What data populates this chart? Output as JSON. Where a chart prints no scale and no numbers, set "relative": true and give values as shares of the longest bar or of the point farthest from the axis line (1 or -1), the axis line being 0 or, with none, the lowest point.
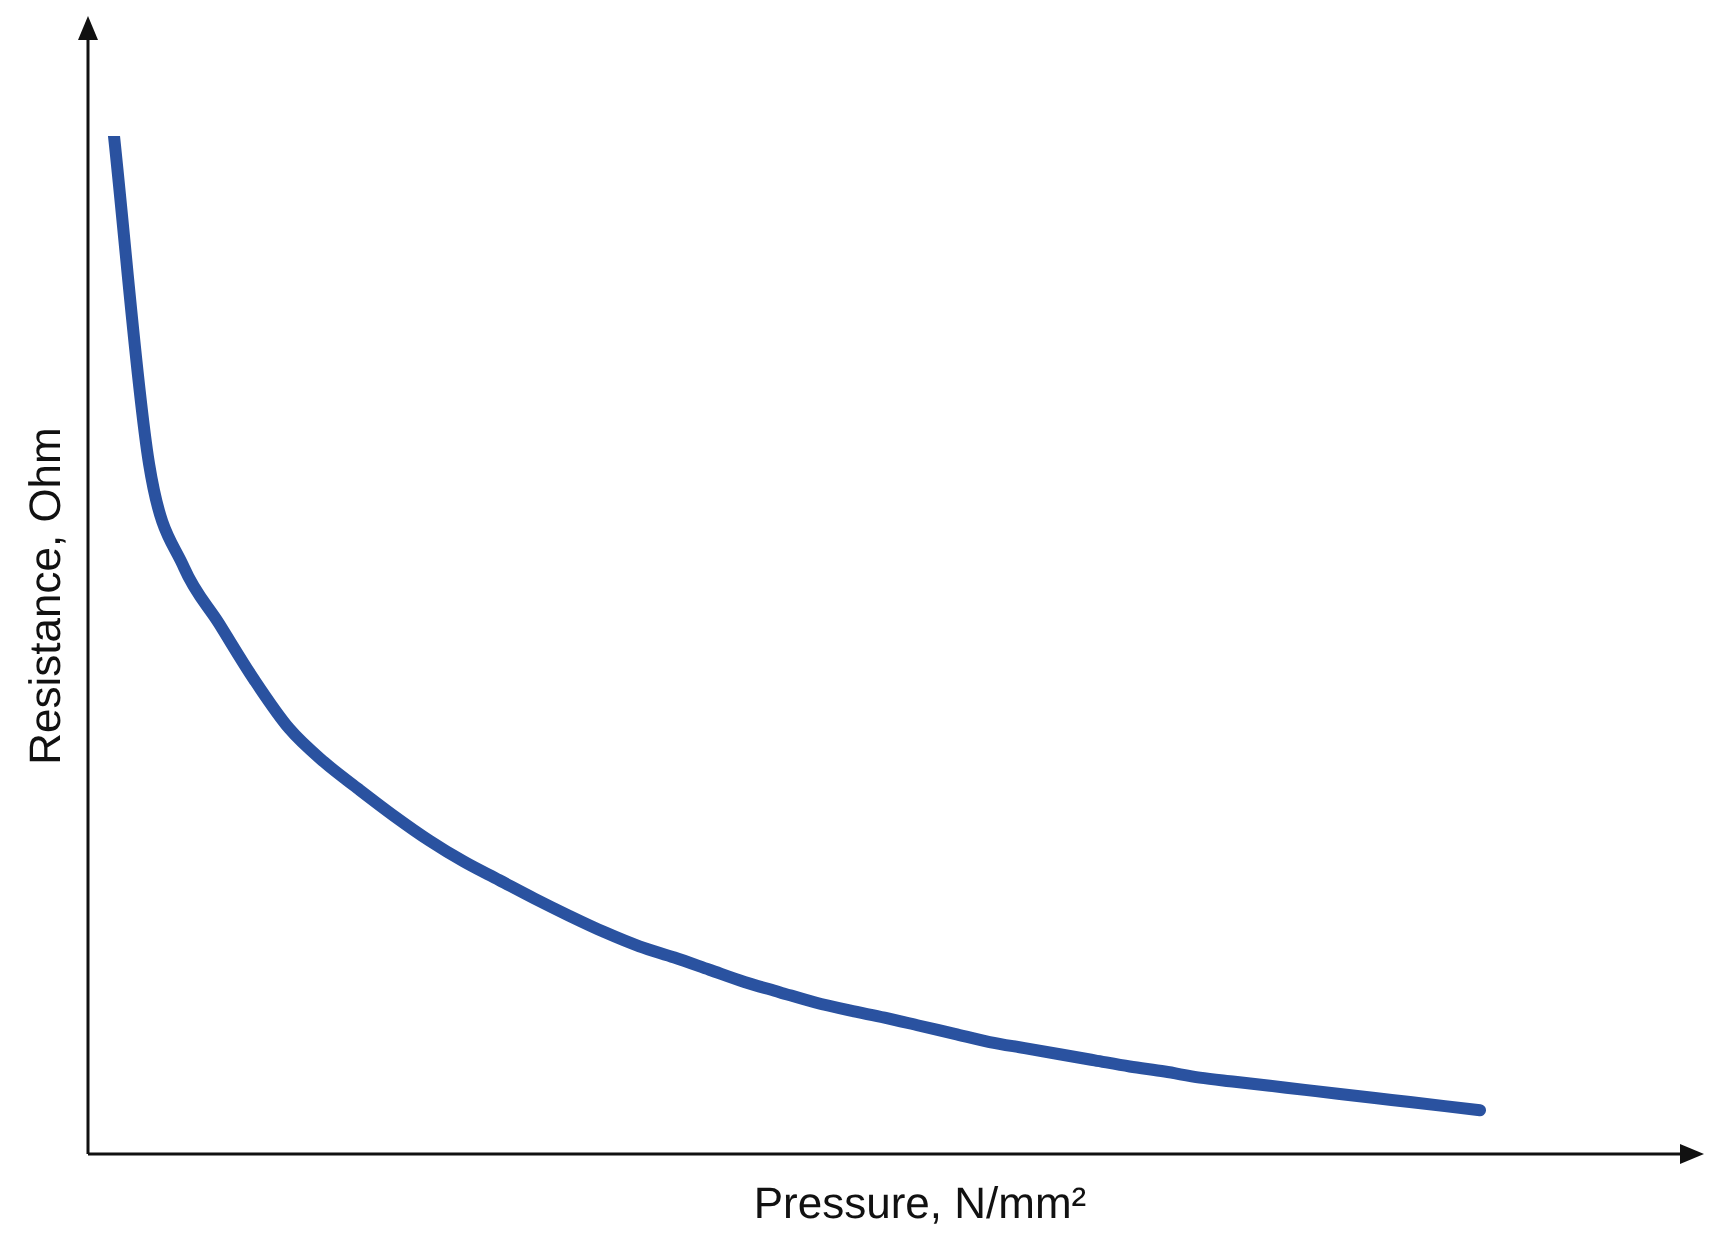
{
  "chart_data": {
    "type": "line",
    "relative": true,
    "xlabel": "Pressure, N/mm²",
    "ylabel": "Resistance, Ohm",
    "categories": [
      null,
      null,
      null,
      null,
      null,
      null,
      null,
      null,
      null,
      null,
      null,
      null,
      null,
      null,
      null,
      null,
      null,
      null,
      null,
      null,
      null,
      null,
      null,
      null,
      null,
      null,
      null,
      null,
      null,
      null,
      null,
      null,
      null,
      null,
      null,
      null,
      null,
      null,
      null,
      null
    ],
    "series": [
      {
        "color": "#2a52a0",
        "values": [
          1,
          0.678,
          0.576,
          0.521,
          0.466,
          0.418,
          0.385,
          0.358,
          0.332,
          0.308,
          0.287,
          0.269,
          0.251,
          0.234,
          0.218,
          0.204,
          0.193,
          0.181,
          0.169,
          0.159,
          0.149,
          0.141,
          0.134,
          0.126,
          0.118,
          0.11,
          0.104,
          0.098,
          0.092,
          0.086,
          0.081,
          0.075,
          0.071,
          0.067,
          0.063,
          0.059,
          0.055,
          0.051,
          0.047,
          0.043
        ]
      }
    ]
  }
}
